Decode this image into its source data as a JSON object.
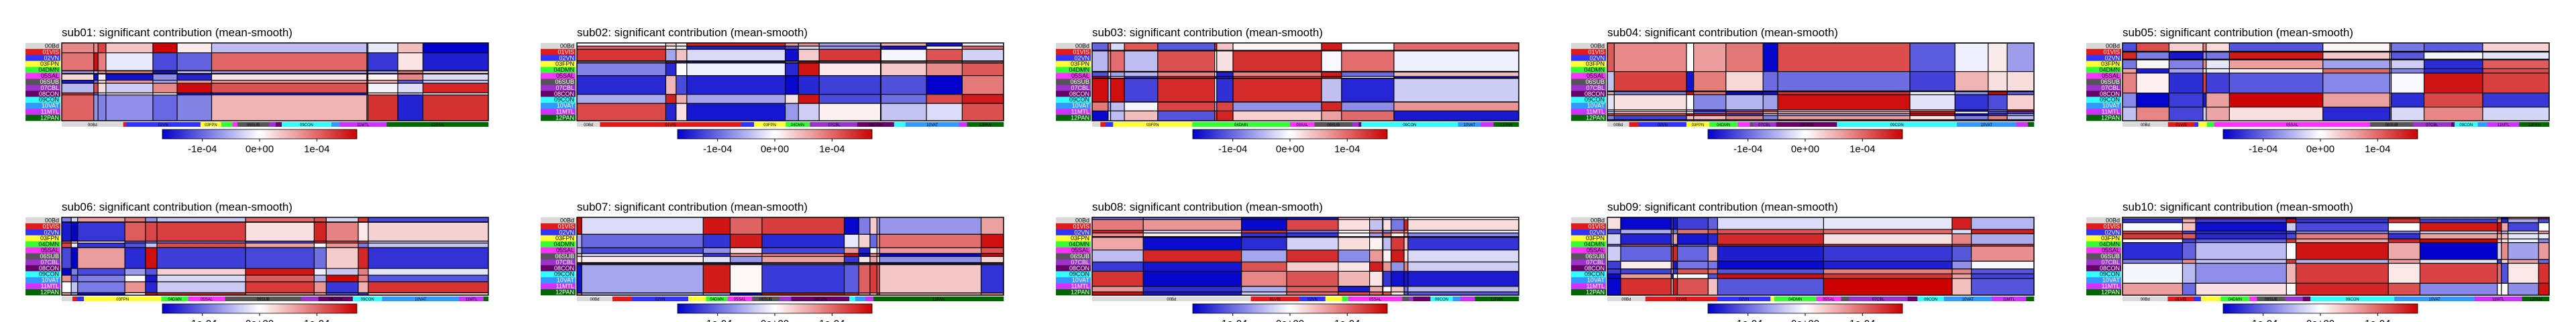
{
  "chart_data": {
    "type": "heatmap",
    "colorbar": {
      "ticks": [
        "-1e-04",
        "0e+00",
        "1e-04"
      ],
      "tick_values": [
        -0.0001,
        0,
        0.0001
      ],
      "range": [
        -0.00017,
        0.00017
      ],
      "colors": [
        "#0000cc",
        "#ffffff",
        "#cc0000"
      ]
    },
    "networks": [
      {
        "label": "00Bd",
        "color": "#d9d9d9",
        "text_color": "#000000"
      },
      {
        "label": "01VIS",
        "color": "#e31a1c",
        "text_color": "#ffffff"
      },
      {
        "label": "02VN",
        "color": "#3333ff",
        "text_color": "#ffffff"
      },
      {
        "label": "03FPN",
        "color": "#ffff33",
        "text_color": "#000000"
      },
      {
        "label": "04DMN",
        "color": "#33ff33",
        "text_color": "#000000"
      },
      {
        "label": "05SAL",
        "color": "#ff33ff",
        "text_color": "#000000"
      },
      {
        "label": "06SUB",
        "color": "#555555",
        "text_color": "#ffffff"
      },
      {
        "label": "07CBL",
        "color": "#9933cc",
        "text_color": "#ffffff"
      },
      {
        "label": "08CON",
        "color": "#660066",
        "text_color": "#ffffff"
      },
      {
        "label": "09CON",
        "color": "#33ffff",
        "text_color": "#000000"
      },
      {
        "label": "10VAT",
        "color": "#3399ff",
        "text_color": "#ffffff"
      },
      {
        "label": "11MTL",
        "color": "#cc33ff",
        "text_color": "#ffffff"
      },
      {
        "label": "12PAN",
        "color": "#006600",
        "text_color": "#ffffff"
      }
    ],
    "panels": [
      {
        "title": "sub01: significant contribution (mean-smooth)",
        "seed": 11
      },
      {
        "title": "sub02: significant contribution (mean-smooth)",
        "seed": 23
      },
      {
        "title": "sub03: significant contribution (mean-smooth)",
        "seed": 37
      },
      {
        "title": "sub04: significant contribution (mean-smooth)",
        "seed": 41
      },
      {
        "title": "sub05: significant contribution (mean-smooth)",
        "seed": 53
      },
      {
        "title": "sub06: significant contribution (mean-smooth)",
        "seed": 67
      },
      {
        "title": "sub07: significant contribution (mean-smooth)",
        "seed": 71
      },
      {
        "title": "sub08: significant contribution (mean-smooth)",
        "seed": 83
      },
      {
        "title": "sub09: significant contribution (mean-smooth)",
        "seed": 97
      },
      {
        "title": "sub10: significant contribution (mean-smooth)",
        "seed": 101
      }
    ],
    "bottom_labels": [
      "00Bd",
      "01VIS",
      "02VN",
      "03FPN",
      "04DMN",
      "05SAL",
      "06SUB",
      "07CBL",
      "08CON",
      "09CON",
      "10VAT",
      "11MTL",
      "12PAN"
    ]
  }
}
